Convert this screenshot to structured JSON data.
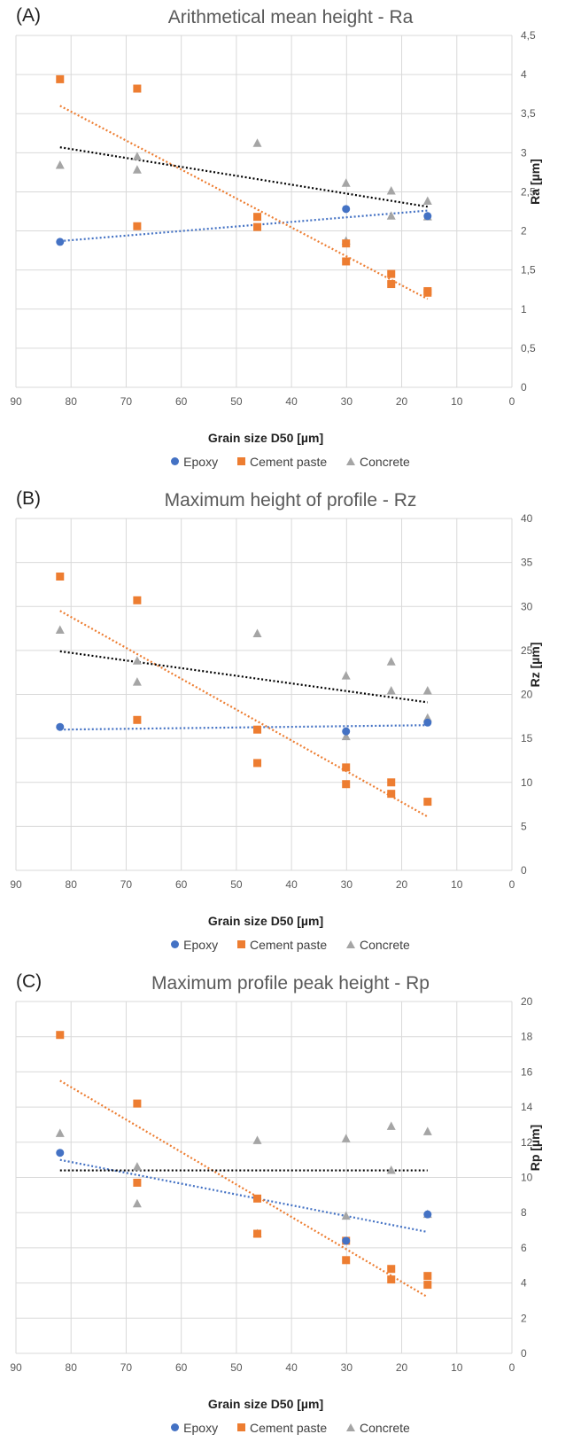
{
  "colors": {
    "epoxy": "#4472C4",
    "cement": "#ED7D31",
    "concrete": "#A5A5A5",
    "trend_epoxy": "#4472C4",
    "trend_cement": "#ED7D31",
    "trend_concrete": "#000000"
  },
  "chart_data": [
    {
      "panel": "(A)",
      "type": "scatter",
      "title": "Arithmetical mean height - Ra",
      "xlabel": "Grain size D50 [µm]",
      "ylabel": "Ra [µm]",
      "xlim": [
        90,
        0
      ],
      "ylim": [
        0,
        4.5
      ],
      "x_ticks": [
        "90",
        "80",
        "70",
        "60",
        "50",
        "40",
        "30",
        "20",
        "10",
        "0"
      ],
      "y_ticks": [
        "0",
        "0,5",
        "1",
        "1,5",
        "2",
        "2,5",
        "3",
        "3,5",
        "4",
        "4,5"
      ],
      "x_reversed": true,
      "y_axis_side": "right",
      "grid": true,
      "legend": "bottom",
      "series": [
        {
          "name": "Epoxy",
          "marker": "circle",
          "x": [
            82,
            30.1,
            15.3
          ],
          "y": [
            1.86,
            2.28,
            2.19
          ]
        },
        {
          "name": "Cement paste",
          "marker": "square",
          "x": [
            82,
            68,
            68,
            46.2,
            46.2,
            30.1,
            30.1,
            21.9,
            21.9,
            15.3,
            15.3
          ],
          "y": [
            3.94,
            3.82,
            2.06,
            2.18,
            2.05,
            1.84,
            1.61,
            1.45,
            1.32,
            1.23,
            1.21
          ]
        },
        {
          "name": "Concrete",
          "marker": "triangle",
          "x": [
            82,
            68,
            68,
            46.2,
            30.1,
            30.1,
            21.9,
            21.9,
            15.3,
            15.3
          ],
          "y": [
            2.84,
            2.95,
            2.78,
            3.12,
            2.61,
            1.87,
            2.51,
            2.19,
            2.38,
            2.18
          ]
        }
      ],
      "trendlines": [
        {
          "series": "Epoxy",
          "x": [
            82,
            15.3
          ],
          "y": [
            1.87,
            2.26
          ]
        },
        {
          "series": "Cement paste",
          "x": [
            82,
            15.3
          ],
          "y": [
            3.6,
            1.13
          ]
        },
        {
          "series": "Concrete",
          "x": [
            82,
            15.3
          ],
          "y": [
            3.07,
            2.31
          ]
        }
      ]
    },
    {
      "panel": "(B)",
      "type": "scatter",
      "title": "Maximum height of profile - Rz",
      "xlabel": "Grain size D50 [µm]",
      "ylabel": "Rz [µm]",
      "xlim": [
        90,
        0
      ],
      "ylim": [
        0,
        40
      ],
      "x_ticks": [
        "90",
        "80",
        "70",
        "60",
        "50",
        "40",
        "30",
        "20",
        "10",
        "0"
      ],
      "y_ticks": [
        "0",
        "5",
        "10",
        "15",
        "20",
        "25",
        "30",
        "35",
        "40"
      ],
      "x_reversed": true,
      "y_axis_side": "right",
      "grid": true,
      "legend": "bottom",
      "series": [
        {
          "name": "Epoxy",
          "marker": "circle",
          "x": [
            82,
            30.1,
            15.3
          ],
          "y": [
            16.3,
            15.8,
            16.8
          ]
        },
        {
          "name": "Cement paste",
          "marker": "square",
          "x": [
            82,
            68,
            68,
            46.2,
            46.2,
            30.1,
            30.1,
            21.9,
            21.9,
            15.3
          ],
          "y": [
            33.4,
            30.7,
            17.1,
            16.0,
            12.2,
            11.7,
            9.8,
            10.0,
            8.7,
            7.8
          ]
        },
        {
          "name": "Concrete",
          "marker": "triangle",
          "x": [
            82,
            68,
            68,
            46.2,
            30.1,
            30.1,
            21.9,
            21.9,
            15.3,
            15.3
          ],
          "y": [
            27.3,
            23.8,
            21.4,
            26.9,
            22.1,
            15.2,
            23.7,
            20.4,
            20.4,
            17.3
          ]
        }
      ],
      "trendlines": [
        {
          "series": "Epoxy",
          "x": [
            82,
            15.3
          ],
          "y": [
            16.0,
            16.5
          ]
        },
        {
          "series": "Cement paste",
          "x": [
            82,
            15.3
          ],
          "y": [
            29.5,
            6.1
          ]
        },
        {
          "series": "Concrete",
          "x": [
            82,
            15.3
          ],
          "y": [
            24.9,
            19.1
          ]
        }
      ]
    },
    {
      "panel": "(C)",
      "type": "scatter",
      "title": "Maximum profile peak height - Rp",
      "xlabel": "Grain size D50 [µm]",
      "ylabel": "Rp [µm]",
      "xlim": [
        90,
        0
      ],
      "ylim": [
        0,
        20
      ],
      "x_ticks": [
        "90",
        "80",
        "70",
        "60",
        "50",
        "40",
        "30",
        "20",
        "10",
        "0"
      ],
      "y_ticks": [
        "0",
        "2",
        "4",
        "6",
        "8",
        "10",
        "12",
        "14",
        "16",
        "18",
        "20"
      ],
      "x_reversed": true,
      "y_axis_side": "right",
      "grid": true,
      "legend": "bottom",
      "series": [
        {
          "name": "Epoxy",
          "marker": "circle",
          "x": [
            82,
            30.1,
            15.3
          ],
          "y": [
            11.4,
            6.4,
            7.9
          ]
        },
        {
          "name": "Cement paste",
          "marker": "square",
          "x": [
            82,
            68,
            68,
            46.2,
            46.2,
            30.1,
            30.1,
            21.9,
            21.9,
            15.3,
            15.3
          ],
          "y": [
            18.1,
            14.2,
            9.7,
            8.8,
            6.8,
            6.4,
            5.3,
            4.8,
            4.2,
            4.4,
            3.9
          ]
        },
        {
          "name": "Concrete",
          "marker": "triangle",
          "x": [
            82,
            68,
            68,
            46.2,
            46.2,
            30.1,
            30.1,
            21.9,
            21.9,
            15.3,
            15.3
          ],
          "y": [
            12.5,
            10.6,
            8.5,
            12.1,
            6.8,
            12.2,
            7.8,
            12.9,
            10.4,
            12.6,
            7.9
          ]
        }
      ],
      "trendlines": [
        {
          "series": "Epoxy",
          "x": [
            82,
            15.3
          ],
          "y": [
            11.0,
            6.9
          ]
        },
        {
          "series": "Cement paste",
          "x": [
            82,
            15.3
          ],
          "y": [
            15.5,
            3.2
          ]
        },
        {
          "series": "Concrete",
          "x": [
            82,
            15.3
          ],
          "y": [
            10.4,
            10.4
          ]
        }
      ]
    }
  ]
}
